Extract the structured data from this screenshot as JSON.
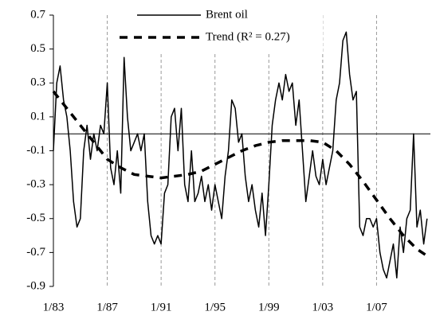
{
  "chart_data": {
    "type": "line",
    "xlim": [
      1983,
      2011
    ],
    "xticks": [
      {
        "value": 1983,
        "label": "1/83"
      },
      {
        "value": 1987,
        "label": "1/87"
      },
      {
        "value": 1991,
        "label": "1/91"
      },
      {
        "value": 1995,
        "label": "1/95"
      },
      {
        "value": 1999,
        "label": "1/99"
      },
      {
        "value": 2003,
        "label": "1/03"
      },
      {
        "value": 2007,
        "label": "1/07"
      }
    ],
    "ylim": [
      -0.9,
      0.7
    ],
    "yticks": [
      -0.9,
      -0.7,
      -0.5,
      -0.3,
      -0.1,
      0.1,
      0.3,
      0.5,
      0.7
    ],
    "grid": "x",
    "legend": "top",
    "series": [
      {
        "name": "Brent oil",
        "color": "#000000",
        "style": "solid",
        "x": [
          1983,
          1983.25,
          1983.5,
          1983.75,
          1984,
          1984.25,
          1984.5,
          1984.75,
          1985,
          1985.25,
          1985.5,
          1985.75,
          1986,
          1986.25,
          1986.5,
          1986.75,
          1987,
          1987.25,
          1987.5,
          1987.75,
          1988,
          1988.25,
          1988.5,
          1988.75,
          1989,
          1989.25,
          1989.5,
          1989.75,
          1990,
          1990.25,
          1990.5,
          1990.75,
          1991,
          1991.25,
          1991.5,
          1991.75,
          1992,
          1992.25,
          1992.5,
          1992.75,
          1993,
          1993.25,
          1993.5,
          1993.75,
          1994,
          1994.25,
          1994.5,
          1994.75,
          1995,
          1995.25,
          1995.5,
          1995.75,
          1996,
          1996.25,
          1996.5,
          1996.75,
          1997,
          1997.25,
          1997.5,
          1997.75,
          1998,
          1998.25,
          1998.5,
          1998.75,
          1999,
          1999.25,
          1999.5,
          1999.75,
          2000,
          2000.25,
          2000.5,
          2000.75,
          2001,
          2001.25,
          2001.5,
          2001.75,
          2002,
          2002.25,
          2002.5,
          2002.75,
          2003,
          2003.25,
          2003.5,
          2003.75,
          2004,
          2004.25,
          2004.5,
          2004.75,
          2005,
          2005.25,
          2005.5,
          2005.75,
          2006,
          2006.25,
          2006.5,
          2006.75,
          2007,
          2007.25,
          2007.5,
          2007.75,
          2008,
          2008.25,
          2008.5,
          2008.75,
          2009,
          2009.25,
          2009.5,
          2009.75,
          2010,
          2010.25,
          2010.5,
          2010.75
        ],
        "values": [
          -0.1,
          0.3,
          0.4,
          0.2,
          0.1,
          -0.1,
          -0.4,
          -0.55,
          -0.5,
          -0.1,
          0.05,
          -0.15,
          0.0,
          -0.1,
          0.05,
          0.0,
          0.3,
          -0.2,
          -0.3,
          -0.1,
          -0.35,
          0.45,
          0.1,
          -0.1,
          -0.05,
          0.0,
          -0.1,
          0.0,
          -0.4,
          -0.6,
          -0.65,
          -0.6,
          -0.65,
          -0.35,
          -0.3,
          0.1,
          0.15,
          -0.1,
          0.15,
          -0.3,
          -0.4,
          -0.1,
          -0.4,
          -0.35,
          -0.25,
          -0.4,
          -0.3,
          -0.45,
          -0.3,
          -0.4,
          -0.5,
          -0.25,
          -0.1,
          0.2,
          0.15,
          -0.05,
          0.0,
          -0.25,
          -0.4,
          -0.3,
          -0.45,
          -0.55,
          -0.35,
          -0.6,
          -0.3,
          0.05,
          0.2,
          0.3,
          0.2,
          0.35,
          0.25,
          0.3,
          0.05,
          0.2,
          -0.1,
          -0.4,
          -0.25,
          -0.1,
          -0.25,
          -0.3,
          -0.15,
          -0.3,
          -0.2,
          -0.1,
          0.2,
          0.3,
          0.55,
          0.6,
          0.35,
          0.2,
          0.25,
          -0.55,
          -0.6,
          -0.5,
          -0.5,
          -0.55,
          -0.5,
          -0.7,
          -0.8,
          -0.85,
          -0.75,
          -0.65,
          -0.85,
          -0.55,
          -0.7,
          -0.5,
          -0.45,
          0.0,
          -0.55,
          -0.45,
          -0.65,
          -0.5
        ]
      },
      {
        "name": "Trend (R² = 0.27)",
        "color": "#000000",
        "style": "dashed",
        "x": [
          1983,
          1984,
          1985,
          1986,
          1987,
          1988,
          1989,
          1990,
          1991,
          1992,
          1993,
          1994,
          1995,
          1996,
          1997,
          1998,
          1999,
          2000,
          2001,
          2002,
          2003,
          2004,
          2005,
          2006,
          2007,
          2008,
          2009,
          2010,
          2010.75
        ],
        "values": [
          0.25,
          0.15,
          0.05,
          -0.05,
          -0.15,
          -0.2,
          -0.24,
          -0.25,
          -0.26,
          -0.25,
          -0.24,
          -0.22,
          -0.18,
          -0.14,
          -0.1,
          -0.07,
          -0.05,
          -0.04,
          -0.04,
          -0.04,
          -0.05,
          -0.1,
          -0.18,
          -0.28,
          -0.39,
          -0.5,
          -0.6,
          -0.68,
          -0.72
        ]
      }
    ]
  }
}
